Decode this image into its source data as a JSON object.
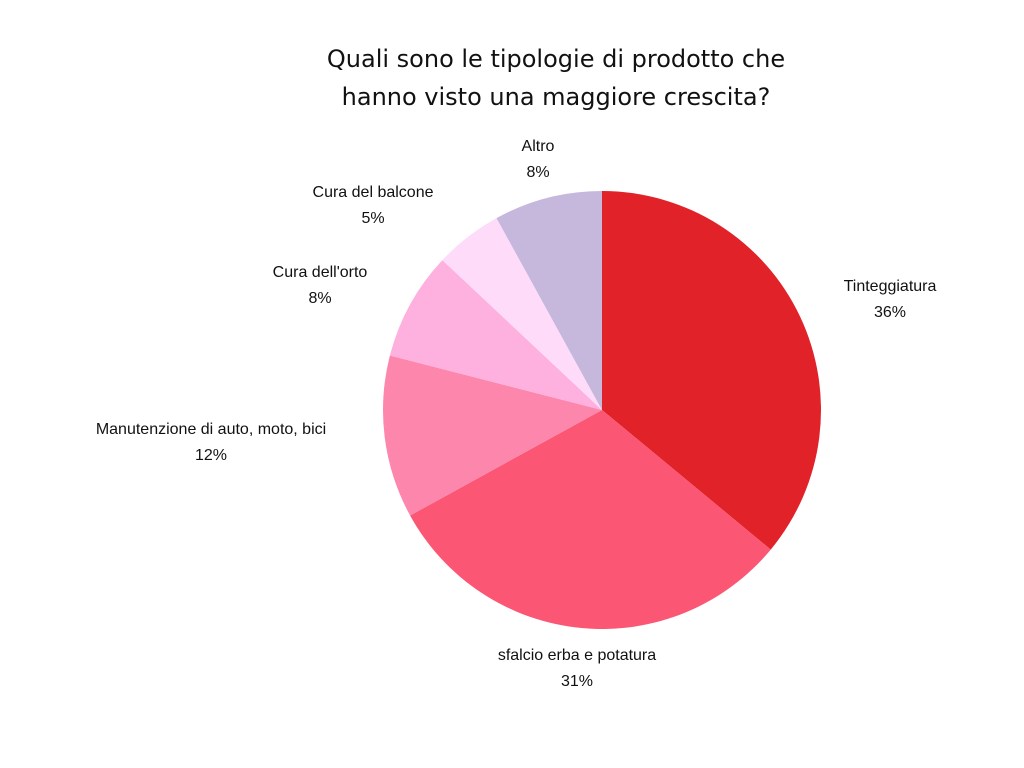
{
  "chart_data": {
    "type": "pie",
    "title_lines": [
      "Quali sono le tipologie di prodotto che",
      "hanno visto una maggiore crescita?"
    ],
    "start": "top",
    "direction": "clockwise",
    "slices": [
      {
        "label": "Tinteggiatura",
        "value": 36,
        "value_label": "36%",
        "color": "#e12229"
      },
      {
        "label": "sfalcio erba e potatura",
        "value": 31,
        "value_label": "31%",
        "color": "#fb5673"
      },
      {
        "label": "Manutenzione di auto, moto, bici",
        "value": 12,
        "value_label": "12%",
        "color": "#fd86ad"
      },
      {
        "label": "Cura dell'orto",
        "value": 8,
        "value_label": "8%",
        "color": "#feb0de"
      },
      {
        "label": "Cura del balcone",
        "value": 5,
        "value_label": "5%",
        "color": "#fedcf9"
      },
      {
        "label": "Altro",
        "value": 8,
        "value_label": "8%",
        "color": "#c6b7dc"
      }
    ]
  }
}
